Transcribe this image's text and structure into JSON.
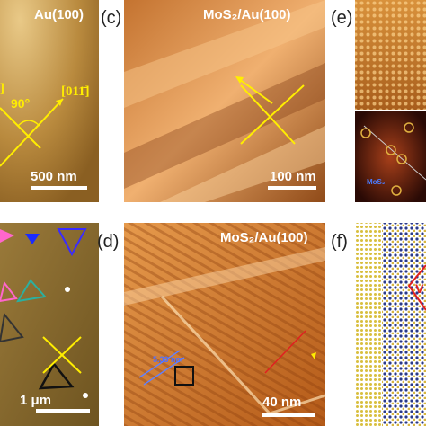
{
  "top_left": {
    "title": "Au(100)",
    "bracket": "]",
    "angle": "90°",
    "direction": "[011̄]",
    "scale": "500 nm"
  },
  "panel_c": {
    "label": "(c)",
    "title": "MoS₂/Au(100)",
    "scale": "100 nm"
  },
  "panel_e": {
    "label": "(e)",
    "annotation": "MoS₂"
  },
  "bottom_left": {
    "scale": "1 μm"
  },
  "panel_d": {
    "label": "(d)",
    "title": "MoS₂/Au(100)",
    "spacing": "5.33 nm",
    "scale": "40 nm"
  },
  "panel_f": {
    "label": "(f)",
    "annotation": "V"
  }
}
